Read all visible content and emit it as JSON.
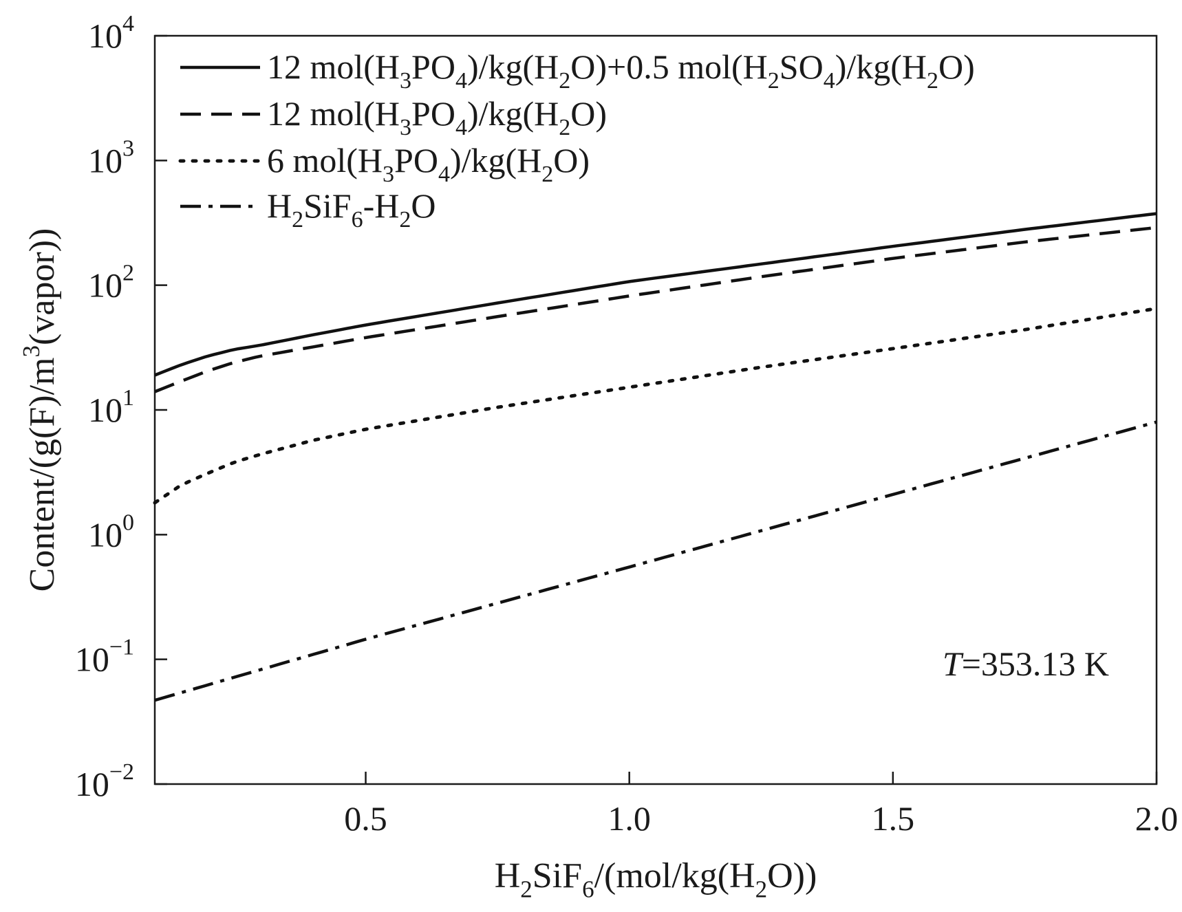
{
  "chart_data": {
    "type": "line",
    "title": "",
    "xlabel": "H2SiF6/(mol/kg(H2O))",
    "ylabel": "Content/(g(F)/m3(vapor))",
    "xlim": [
      0.1,
      2.0
    ],
    "ylim": [
      0.01,
      10000
    ],
    "y_scale": "log",
    "x_ticks": [
      "0.5",
      "1.0",
      "1.5",
      "2.0"
    ],
    "x_tick_values": [
      0.5,
      1.0,
      1.5,
      2.0
    ],
    "y_tick_exponents": [
      "-2",
      "-1",
      "0",
      "1",
      "2",
      "3",
      "4"
    ],
    "y_tick_base": "10",
    "legend_position": "top-left",
    "annotation": {
      "italic": "T",
      "rest": "=353.13 K"
    },
    "series": [
      {
        "name": "12 mol(H3PO4)/kg(H2O)+0.5 mol(H2SO4)/kg(H2O)",
        "style": "solid",
        "x": [
          0.1,
          0.15,
          0.2,
          0.25,
          0.3,
          0.4,
          0.5,
          0.75,
          1.0,
          1.25,
          1.5,
          1.75,
          2.0
        ],
        "y": [
          19,
          23,
          27,
          30.5,
          33,
          40,
          48,
          72,
          107,
          148,
          205,
          280,
          375
        ]
      },
      {
        "name": "12 mol(H3PO4)/kg(H2O)",
        "style": "dashed",
        "x": [
          0.1,
          0.15,
          0.2,
          0.25,
          0.3,
          0.4,
          0.5,
          0.75,
          1.0,
          1.25,
          1.5,
          1.75,
          2.0
        ],
        "y": [
          14,
          17,
          20.5,
          24,
          27,
          32,
          38,
          56,
          82,
          117,
          164,
          222,
          290
        ]
      },
      {
        "name": "6 mol(H3PO4)/kg(H2O)",
        "style": "dotted",
        "x": [
          0.1,
          0.15,
          0.2,
          0.25,
          0.3,
          0.4,
          0.5,
          0.75,
          1.0,
          1.25,
          1.5,
          1.75,
          2.0
        ],
        "y": [
          1.8,
          2.5,
          3.1,
          3.8,
          4.4,
          5.7,
          7.0,
          10.5,
          15.2,
          22,
          31,
          44,
          65
        ]
      },
      {
        "name": "H2SiF6-H2O",
        "style": "dashdot",
        "x": [
          0.1,
          0.5,
          1.0,
          1.5,
          2.0
        ],
        "y": [
          0.047,
          0.145,
          0.55,
          2.1,
          8.0
        ]
      }
    ]
  },
  "colors": {
    "line": "#111111",
    "axis": "#1a1a1a",
    "background": "#ffffff"
  }
}
